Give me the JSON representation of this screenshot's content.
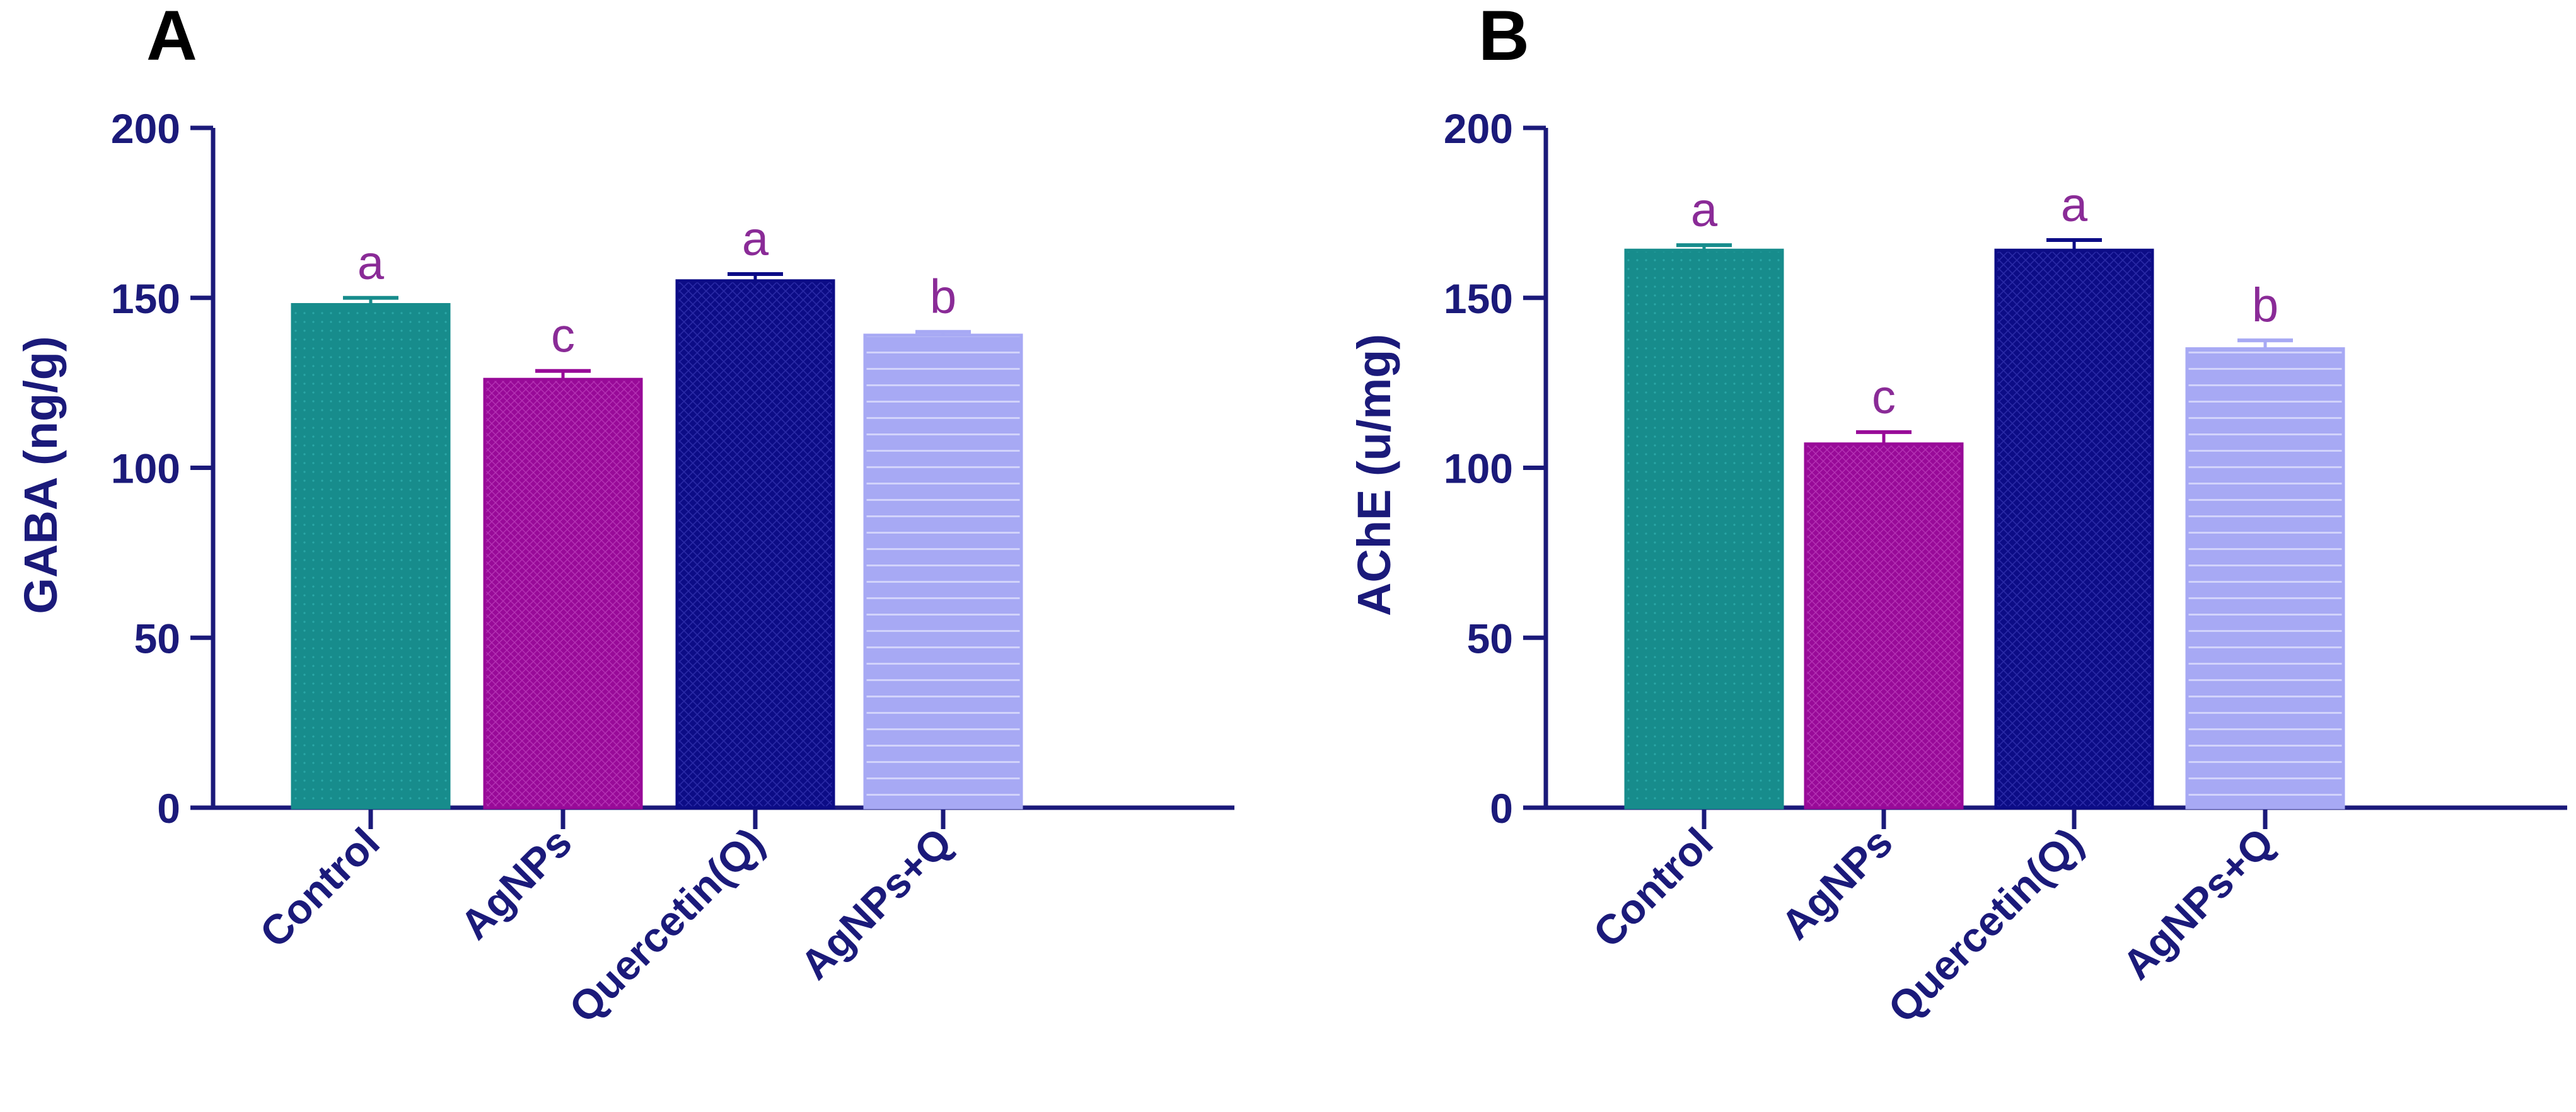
{
  "figure": {
    "colors": {
      "axis": "#1b1a7a",
      "control": "#178c8c",
      "agnps": "#980a98",
      "quercetin": "#0c0c86",
      "combo": "#a7a9f4",
      "letters": "#8a2b97"
    }
  },
  "chart_data": [
    {
      "panel_label": "A",
      "type": "bar",
      "title": "",
      "xlabel": "",
      "ylabel": "GABA (ng/g)",
      "ylim": [
        0,
        200
      ],
      "yticks": [
        "0",
        "50",
        "100",
        "150",
        "200"
      ],
      "categories": [
        "Control",
        "AgNPs",
        "Quercetin(Q)",
        "AgNPs+Q"
      ],
      "values": [
        148,
        126,
        155,
        139
      ],
      "errors": [
        2,
        2.5,
        2,
        1
      ],
      "significance": [
        "a",
        "c",
        "a",
        "b"
      ]
    },
    {
      "panel_label": "B",
      "type": "bar",
      "title": "",
      "xlabel": "",
      "ylabel": "AChE (u/mg)",
      "ylim": [
        0,
        200
      ],
      "yticks": [
        "0",
        "50",
        "100",
        "150",
        "200"
      ],
      "categories": [
        "Control",
        "AgNPs",
        "Quercetin(Q)",
        "AgNPs+Q"
      ],
      "values": [
        164,
        107,
        164,
        135
      ],
      "errors": [
        1.5,
        3.5,
        3,
        2.5
      ],
      "significance": [
        "a",
        "c",
        "a",
        "b"
      ]
    }
  ]
}
